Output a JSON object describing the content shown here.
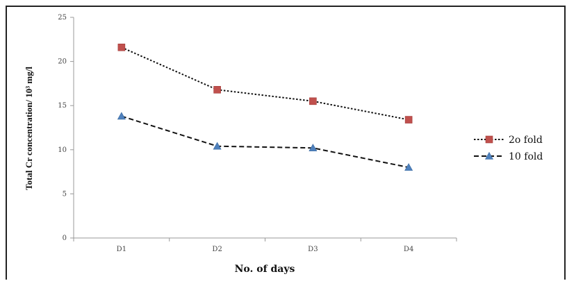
{
  "chart_data": {
    "type": "line",
    "title": "",
    "xlabel": "No. of days",
    "ylabel": "Total Cr concentration/ 10³ mg/l",
    "categories": [
      "D1",
      "D2",
      "D3",
      "D4"
    ],
    "ylim": [
      0,
      25
    ],
    "yticks": [
      "0",
      "5",
      "10",
      "15",
      "20",
      "25"
    ],
    "grid": false,
    "legend_position": "right",
    "series": [
      {
        "name": "2o fold",
        "values": [
          21.6,
          16.8,
          15.5,
          13.4
        ],
        "color": "#c0504d",
        "marker": "square",
        "line_style": "dotted"
      },
      {
        "name": "10 fold",
        "values": [
          13.8,
          10.4,
          10.2,
          8.0
        ],
        "color": "#4f81bd",
        "marker": "triangle",
        "line_style": "dashed"
      }
    ]
  }
}
